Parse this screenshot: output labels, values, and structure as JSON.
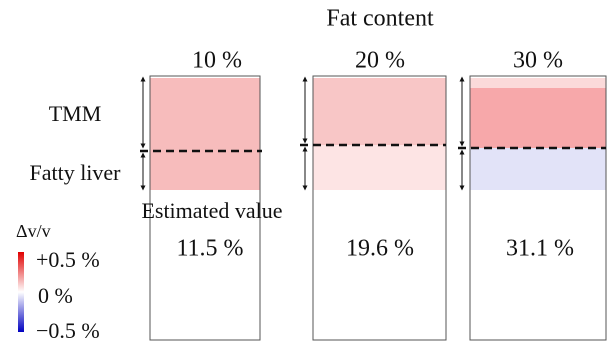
{
  "header": {
    "title": "Fat content"
  },
  "columns": [
    "10 %",
    "20 %",
    "30 %"
  ],
  "rows": {
    "tmm": "TMM",
    "fatty_liver": "Fatty liver",
    "estimated": "Estimated value"
  },
  "estimates": [
    "11.5 %",
    "19.6 %",
    "31.1 %"
  ],
  "colorbar": {
    "title": "Δv/v",
    "max": "+0.5 %",
    "mid": "0 %",
    "min": "−0.5 %"
  }
}
